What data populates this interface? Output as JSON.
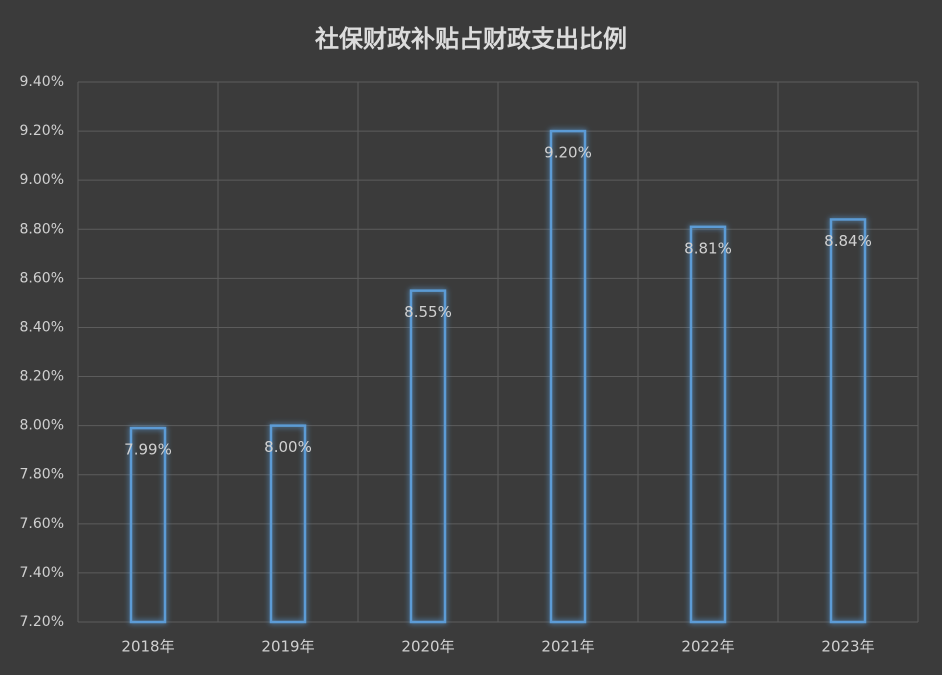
{
  "chart_data": {
    "type": "bar",
    "title": "社保财政补贴占财政支出比例",
    "categories": [
      "2018年",
      "2019年",
      "2020年",
      "2021年",
      "2022年",
      "2023年"
    ],
    "values": [
      7.99,
      8,
      8.55,
      9.2,
      8.81,
      8.84
    ],
    "value_labels": [
      "7.99%",
      "8.00%",
      "8.55%",
      "9.20%",
      "8.81%",
      "8.84%"
    ],
    "color": "#5b9bd5",
    "ylim": [
      7.2,
      9.4
    ],
    "yticks": [
      {
        "value": 7.2,
        "label": "7.20%"
      },
      {
        "value": 7.4,
        "label": "7.40%"
      },
      {
        "value": 7.6,
        "label": "7.60%"
      },
      {
        "value": 7.8,
        "label": "7.80%"
      },
      {
        "value": 8.0,
        "label": "8.00%"
      },
      {
        "value": 8.2,
        "label": "8.20%"
      },
      {
        "value": 8.4,
        "label": "8.40%"
      },
      {
        "value": 8.6,
        "label": "8.60%"
      },
      {
        "value": 8.8,
        "label": "8.80%"
      },
      {
        "value": 9.0,
        "label": "9.00%"
      },
      {
        "value": 9.2,
        "label": "9.20%"
      },
      {
        "value": 9.4,
        "label": "9.40%"
      }
    ],
    "grid": true
  }
}
